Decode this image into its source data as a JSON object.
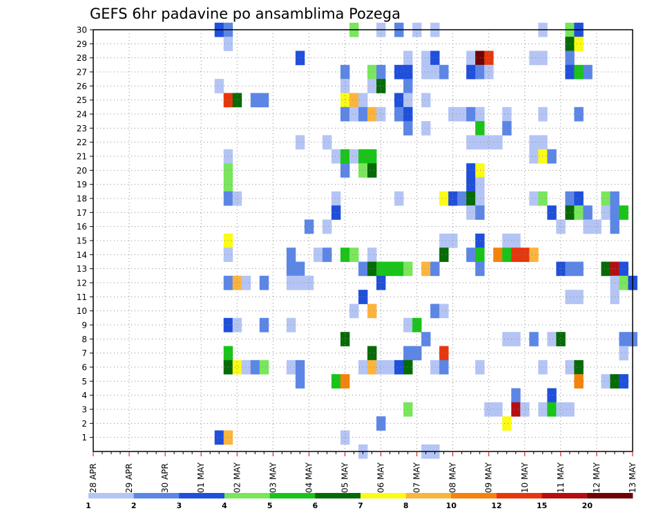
{
  "chart_data": {
    "type": "heatmap",
    "title": "GEFS 6hr padavine po ansamblima Pozega",
    "xlabel": "",
    "ylabel": "",
    "x_tick_labels": [
      "28 APR",
      "29 APR",
      "30 APR",
      "01 MAY",
      "02 MAY",
      "03 MAY",
      "04 MAY",
      "05 MAY",
      "06 MAY",
      "07 MAY",
      "08 MAY",
      "09 MAY",
      "10 MAY",
      "11 MAY",
      "12 MAY",
      "13 MAY"
    ],
    "y_tick_labels": [
      "1",
      "2",
      "3",
      "4",
      "5",
      "6",
      "7",
      "8",
      "9",
      "10",
      "11",
      "12",
      "13",
      "14",
      "15",
      "16",
      "17",
      "18",
      "19",
      "20",
      "21",
      "22",
      "23",
      "24",
      "25",
      "26",
      "27",
      "28",
      "29",
      "30"
    ],
    "x_range_steps": [
      0,
      60
    ],
    "y_range": [
      0,
      30
    ],
    "grid": true,
    "colorbar": {
      "labels": [
        "1",
        "2",
        "3",
        "4",
        "5",
        "6",
        "7",
        "8",
        "10",
        "12",
        "15",
        "20"
      ],
      "colors": [
        "#b4c5f5",
        "#5c86e6",
        "#1f4fdb",
        "#79e65b",
        "#19c419",
        "#066b06",
        "#fbfb14",
        "#fbb43c",
        "#f5820a",
        "#e8360c",
        "#b50e0e",
        "#6e0404"
      ]
    },
    "cells": [
      {
        "m": 30,
        "s": 14,
        "c": 3
      },
      {
        "m": 30,
        "s": 15,
        "c": 2
      },
      {
        "m": 30,
        "s": 29,
        "c": 4
      },
      {
        "m": 30,
        "s": 32,
        "c": 1
      },
      {
        "m": 30,
        "s": 34,
        "c": 2
      },
      {
        "m": 30,
        "s": 36,
        "c": 1
      },
      {
        "m": 30,
        "s": 38,
        "c": 1
      },
      {
        "m": 30,
        "s": 50,
        "c": 1
      },
      {
        "m": 30,
        "s": 53,
        "c": 4
      },
      {
        "m": 30,
        "s": 54,
        "c": 3
      },
      {
        "m": 29,
        "s": 15,
        "c": 1
      },
      {
        "m": 29,
        "s": 53,
        "c": 6
      },
      {
        "m": 29,
        "s": 54,
        "c": 7
      },
      {
        "m": 28,
        "s": 23,
        "c": 3
      },
      {
        "m": 28,
        "s": 35,
        "c": 1
      },
      {
        "m": 28,
        "s": 37,
        "c": 1
      },
      {
        "m": 28,
        "s": 38,
        "c": 3
      },
      {
        "m": 28,
        "s": 42,
        "c": 1
      },
      {
        "m": 28,
        "s": 43,
        "c": 12
      },
      {
        "m": 28,
        "s": 44,
        "c": 10
      },
      {
        "m": 28,
        "s": 49,
        "c": 1
      },
      {
        "m": 28,
        "s": 50,
        "c": 1
      },
      {
        "m": 28,
        "s": 53,
        "c": 2
      },
      {
        "m": 27,
        "s": 28,
        "c": 2
      },
      {
        "m": 27,
        "s": 31,
        "c": 4
      },
      {
        "m": 27,
        "s": 32,
        "c": 2
      },
      {
        "m": 27,
        "s": 34,
        "c": 3
      },
      {
        "m": 27,
        "s": 35,
        "c": 3
      },
      {
        "m": 27,
        "s": 37,
        "c": 1
      },
      {
        "m": 27,
        "s": 38,
        "c": 1
      },
      {
        "m": 27,
        "s": 39,
        "c": 2
      },
      {
        "m": 27,
        "s": 42,
        "c": 3
      },
      {
        "m": 27,
        "s": 43,
        "c": 2
      },
      {
        "m": 27,
        "s": 44,
        "c": 1
      },
      {
        "m": 27,
        "s": 53,
        "c": 3
      },
      {
        "m": 27,
        "s": 54,
        "c": 5
      },
      {
        "m": 27,
        "s": 55,
        "c": 2
      },
      {
        "m": 26,
        "s": 14,
        "c": 1
      },
      {
        "m": 26,
        "s": 28,
        "c": 1
      },
      {
        "m": 26,
        "s": 31,
        "c": 1
      },
      {
        "m": 26,
        "s": 32,
        "c": 6
      },
      {
        "m": 26,
        "s": 35,
        "c": 2
      },
      {
        "m": 25,
        "s": 15,
        "c": 10
      },
      {
        "m": 25,
        "s": 16,
        "c": 6
      },
      {
        "m": 25,
        "s": 18,
        "c": 2
      },
      {
        "m": 25,
        "s": 19,
        "c": 2
      },
      {
        "m": 25,
        "s": 28,
        "c": 7
      },
      {
        "m": 25,
        "s": 29,
        "c": 8
      },
      {
        "m": 25,
        "s": 30,
        "c": 1
      },
      {
        "m": 25,
        "s": 34,
        "c": 3
      },
      {
        "m": 25,
        "s": 35,
        "c": 1
      },
      {
        "m": 25,
        "s": 37,
        "c": 1
      },
      {
        "m": 24,
        "s": 28,
        "c": 2
      },
      {
        "m": 24,
        "s": 29,
        "c": 1
      },
      {
        "m": 24,
        "s": 30,
        "c": 2
      },
      {
        "m": 24,
        "s": 31,
        "c": 8
      },
      {
        "m": 24,
        "s": 32,
        "c": 1
      },
      {
        "m": 24,
        "s": 34,
        "c": 2
      },
      {
        "m": 24,
        "s": 35,
        "c": 3
      },
      {
        "m": 24,
        "s": 40,
        "c": 1
      },
      {
        "m": 24,
        "s": 41,
        "c": 1
      },
      {
        "m": 24,
        "s": 42,
        "c": 2
      },
      {
        "m": 24,
        "s": 43,
        "c": 1
      },
      {
        "m": 24,
        "s": 46,
        "c": 1
      },
      {
        "m": 24,
        "s": 50,
        "c": 1
      },
      {
        "m": 24,
        "s": 54,
        "c": 2
      },
      {
        "m": 23,
        "s": 35,
        "c": 2
      },
      {
        "m": 23,
        "s": 37,
        "c": 1
      },
      {
        "m": 23,
        "s": 43,
        "c": 5
      },
      {
        "m": 23,
        "s": 46,
        "c": 2
      },
      {
        "m": 22,
        "s": 23,
        "c": 1
      },
      {
        "m": 22,
        "s": 26,
        "c": 1
      },
      {
        "m": 22,
        "s": 42,
        "c": 1
      },
      {
        "m": 22,
        "s": 43,
        "c": 1
      },
      {
        "m": 22,
        "s": 44,
        "c": 1
      },
      {
        "m": 22,
        "s": 45,
        "c": 1
      },
      {
        "m": 22,
        "s": 49,
        "c": 1
      },
      {
        "m": 22,
        "s": 50,
        "c": 1
      },
      {
        "m": 21,
        "s": 15,
        "c": 1
      },
      {
        "m": 21,
        "s": 27,
        "c": 1
      },
      {
        "m": 21,
        "s": 28,
        "c": 5
      },
      {
        "m": 21,
        "s": 29,
        "c": 1
      },
      {
        "m": 21,
        "s": 30,
        "c": 5
      },
      {
        "m": 21,
        "s": 31,
        "c": 5
      },
      {
        "m": 21,
        "s": 49,
        "c": 1
      },
      {
        "m": 21,
        "s": 50,
        "c": 7
      },
      {
        "m": 21,
        "s": 51,
        "c": 2
      },
      {
        "m": 20,
        "s": 15,
        "c": 4
      },
      {
        "m": 20,
        "s": 28,
        "c": 2
      },
      {
        "m": 20,
        "s": 30,
        "c": 4
      },
      {
        "m": 20,
        "s": 31,
        "c": 6
      },
      {
        "m": 20,
        "s": 42,
        "c": 3
      },
      {
        "m": 20,
        "s": 43,
        "c": 7
      },
      {
        "m": 19,
        "s": 15,
        "c": 4
      },
      {
        "m": 19,
        "s": 42,
        "c": 3
      },
      {
        "m": 19,
        "s": 43,
        "c": 1
      },
      {
        "m": 18,
        "s": 15,
        "c": 2
      },
      {
        "m": 18,
        "s": 16,
        "c": 1
      },
      {
        "m": 18,
        "s": 27,
        "c": 1
      },
      {
        "m": 18,
        "s": 34,
        "c": 1
      },
      {
        "m": 18,
        "s": 39,
        "c": 7
      },
      {
        "m": 18,
        "s": 40,
        "c": 3
      },
      {
        "m": 18,
        "s": 41,
        "c": 2
      },
      {
        "m": 18,
        "s": 42,
        "c": 6
      },
      {
        "m": 18,
        "s": 43,
        "c": 1
      },
      {
        "m": 18,
        "s": 49,
        "c": 1
      },
      {
        "m": 18,
        "s": 50,
        "c": 4
      },
      {
        "m": 18,
        "s": 53,
        "c": 2
      },
      {
        "m": 18,
        "s": 54,
        "c": 3
      },
      {
        "m": 18,
        "s": 57,
        "c": 4
      },
      {
        "m": 18,
        "s": 58,
        "c": 2
      },
      {
        "m": 17,
        "s": 27,
        "c": 3
      },
      {
        "m": 17,
        "s": 42,
        "c": 1
      },
      {
        "m": 17,
        "s": 43,
        "c": 2
      },
      {
        "m": 17,
        "s": 51,
        "c": 3
      },
      {
        "m": 17,
        "s": 53,
        "c": 6
      },
      {
        "m": 17,
        "s": 54,
        "c": 4
      },
      {
        "m": 17,
        "s": 55,
        "c": 2
      },
      {
        "m": 17,
        "s": 57,
        "c": 1
      },
      {
        "m": 17,
        "s": 58,
        "c": 2
      },
      {
        "m": 17,
        "s": 59,
        "c": 5
      },
      {
        "m": 16,
        "s": 24,
        "c": 2
      },
      {
        "m": 16,
        "s": 26,
        "c": 1
      },
      {
        "m": 16,
        "s": 52,
        "c": 1
      },
      {
        "m": 16,
        "s": 55,
        "c": 1
      },
      {
        "m": 16,
        "s": 56,
        "c": 1
      },
      {
        "m": 16,
        "s": 58,
        "c": 2
      },
      {
        "m": 15,
        "s": 15,
        "c": 7
      },
      {
        "m": 15,
        "s": 39,
        "c": 1
      },
      {
        "m": 15,
        "s": 40,
        "c": 1
      },
      {
        "m": 15,
        "s": 43,
        "c": 3
      },
      {
        "m": 15,
        "s": 46,
        "c": 1
      },
      {
        "m": 15,
        "s": 47,
        "c": 1
      },
      {
        "m": 14,
        "s": 15,
        "c": 1
      },
      {
        "m": 14,
        "s": 22,
        "c": 2
      },
      {
        "m": 14,
        "s": 25,
        "c": 1
      },
      {
        "m": 14,
        "s": 26,
        "c": 2
      },
      {
        "m": 14,
        "s": 28,
        "c": 5
      },
      {
        "m": 14,
        "s": 29,
        "c": 4
      },
      {
        "m": 14,
        "s": 31,
        "c": 1
      },
      {
        "m": 14,
        "s": 39,
        "c": 6
      },
      {
        "m": 14,
        "s": 42,
        "c": 2
      },
      {
        "m": 14,
        "s": 43,
        "c": 5
      },
      {
        "m": 14,
        "s": 45,
        "c": 9
      },
      {
        "m": 14,
        "s": 46,
        "c": 5
      },
      {
        "m": 14,
        "s": 47,
        "c": 10
      },
      {
        "m": 14,
        "s": 48,
        "c": 10
      },
      {
        "m": 14,
        "s": 49,
        "c": 8
      },
      {
        "m": 13,
        "s": 22,
        "c": 2
      },
      {
        "m": 13,
        "s": 23,
        "c": 2
      },
      {
        "m": 13,
        "s": 30,
        "c": 2
      },
      {
        "m": 13,
        "s": 31,
        "c": 6
      },
      {
        "m": 13,
        "s": 32,
        "c": 5
      },
      {
        "m": 13,
        "s": 33,
        "c": 5
      },
      {
        "m": 13,
        "s": 34,
        "c": 5
      },
      {
        "m": 13,
        "s": 35,
        "c": 4
      },
      {
        "m": 13,
        "s": 37,
        "c": 8
      },
      {
        "m": 13,
        "s": 38,
        "c": 2
      },
      {
        "m": 13,
        "s": 43,
        "c": 2
      },
      {
        "m": 13,
        "s": 52,
        "c": 3
      },
      {
        "m": 13,
        "s": 53,
        "c": 2
      },
      {
        "m": 13,
        "s": 54,
        "c": 2
      },
      {
        "m": 13,
        "s": 57,
        "c": 6
      },
      {
        "m": 13,
        "s": 58,
        "c": 11
      },
      {
        "m": 13,
        "s": 59,
        "c": 3
      },
      {
        "m": 12,
        "s": 15,
        "c": 2
      },
      {
        "m": 12,
        "s": 16,
        "c": 8
      },
      {
        "m": 12,
        "s": 17,
        "c": 1
      },
      {
        "m": 12,
        "s": 19,
        "c": 2
      },
      {
        "m": 12,
        "s": 22,
        "c": 1
      },
      {
        "m": 12,
        "s": 23,
        "c": 1
      },
      {
        "m": 12,
        "s": 24,
        "c": 1
      },
      {
        "m": 12,
        "s": 32,
        "c": 3
      },
      {
        "m": 12,
        "s": 58,
        "c": 1
      },
      {
        "m": 12,
        "s": 59,
        "c": 4
      },
      {
        "m": 12,
        "s": 60,
        "c": 3
      },
      {
        "m": 11,
        "s": 30,
        "c": 3
      },
      {
        "m": 11,
        "s": 53,
        "c": 1
      },
      {
        "m": 11,
        "s": 54,
        "c": 1
      },
      {
        "m": 11,
        "s": 58,
        "c": 1
      },
      {
        "m": 10,
        "s": 29,
        "c": 1
      },
      {
        "m": 10,
        "s": 31,
        "c": 8
      },
      {
        "m": 10,
        "s": 38,
        "c": 2
      },
      {
        "m": 10,
        "s": 39,
        "c": 1
      },
      {
        "m": 9,
        "s": 15,
        "c": 3
      },
      {
        "m": 9,
        "s": 16,
        "c": 1
      },
      {
        "m": 9,
        "s": 19,
        "c": 2
      },
      {
        "m": 9,
        "s": 22,
        "c": 1
      },
      {
        "m": 9,
        "s": 35,
        "c": 1
      },
      {
        "m": 9,
        "s": 36,
        "c": 5
      },
      {
        "m": 8,
        "s": 28,
        "c": 6
      },
      {
        "m": 8,
        "s": 37,
        "c": 2
      },
      {
        "m": 8,
        "s": 46,
        "c": 1
      },
      {
        "m": 8,
        "s": 47,
        "c": 1
      },
      {
        "m": 8,
        "s": 49,
        "c": 2
      },
      {
        "m": 8,
        "s": 51,
        "c": 1
      },
      {
        "m": 8,
        "s": 52,
        "c": 6
      },
      {
        "m": 8,
        "s": 59,
        "c": 2
      },
      {
        "m": 8,
        "s": 60,
        "c": 2
      },
      {
        "m": 7,
        "s": 15,
        "c": 5
      },
      {
        "m": 7,
        "s": 31,
        "c": 6
      },
      {
        "m": 7,
        "s": 35,
        "c": 2
      },
      {
        "m": 7,
        "s": 36,
        "c": 2
      },
      {
        "m": 7,
        "s": 39,
        "c": 10
      },
      {
        "m": 7,
        "s": 59,
        "c": 1
      },
      {
        "m": 6,
        "s": 15,
        "c": 6
      },
      {
        "m": 6,
        "s": 16,
        "c": 7
      },
      {
        "m": 6,
        "s": 17,
        "c": 1
      },
      {
        "m": 6,
        "s": 18,
        "c": 2
      },
      {
        "m": 6,
        "s": 19,
        "c": 4
      },
      {
        "m": 6,
        "s": 22,
        "c": 1
      },
      {
        "m": 6,
        "s": 23,
        "c": 2
      },
      {
        "m": 6,
        "s": 30,
        "c": 1
      },
      {
        "m": 6,
        "s": 31,
        "c": 8
      },
      {
        "m": 6,
        "s": 32,
        "c": 1
      },
      {
        "m": 6,
        "s": 33,
        "c": 1
      },
      {
        "m": 6,
        "s": 34,
        "c": 3
      },
      {
        "m": 6,
        "s": 35,
        "c": 6
      },
      {
        "m": 6,
        "s": 38,
        "c": 1
      },
      {
        "m": 6,
        "s": 39,
        "c": 2
      },
      {
        "m": 6,
        "s": 43,
        "c": 1
      },
      {
        "m": 6,
        "s": 50,
        "c": 1
      },
      {
        "m": 6,
        "s": 53,
        "c": 1
      },
      {
        "m": 6,
        "s": 54,
        "c": 6
      },
      {
        "m": 5,
        "s": 23,
        "c": 2
      },
      {
        "m": 5,
        "s": 27,
        "c": 5
      },
      {
        "m": 5,
        "s": 28,
        "c": 9
      },
      {
        "m": 5,
        "s": 54,
        "c": 9
      },
      {
        "m": 5,
        "s": 57,
        "c": 1
      },
      {
        "m": 5,
        "s": 58,
        "c": 6
      },
      {
        "m": 5,
        "s": 59,
        "c": 3
      },
      {
        "m": 4,
        "s": 47,
        "c": 2
      },
      {
        "m": 4,
        "s": 51,
        "c": 3
      },
      {
        "m": 3,
        "s": 35,
        "c": 4
      },
      {
        "m": 3,
        "s": 44,
        "c": 1
      },
      {
        "m": 3,
        "s": 45,
        "c": 1
      },
      {
        "m": 3,
        "s": 47,
        "c": 11
      },
      {
        "m": 3,
        "s": 48,
        "c": 1
      },
      {
        "m": 3,
        "s": 50,
        "c": 1
      },
      {
        "m": 3,
        "s": 51,
        "c": 5
      },
      {
        "m": 3,
        "s": 52,
        "c": 1
      },
      {
        "m": 3,
        "s": 53,
        "c": 1
      },
      {
        "m": 2,
        "s": 32,
        "c": 2
      },
      {
        "m": 2,
        "s": 46,
        "c": 7
      },
      {
        "m": 1,
        "s": 14,
        "c": 3
      },
      {
        "m": 1,
        "s": 15,
        "c": 8
      },
      {
        "m": 1,
        "s": 28,
        "c": 1
      },
      {
        "m": 0,
        "s": 30,
        "c": 1
      },
      {
        "m": 0,
        "s": 37,
        "c": 1
      },
      {
        "m": 0,
        "s": 38,
        "c": 1
      }
    ]
  }
}
